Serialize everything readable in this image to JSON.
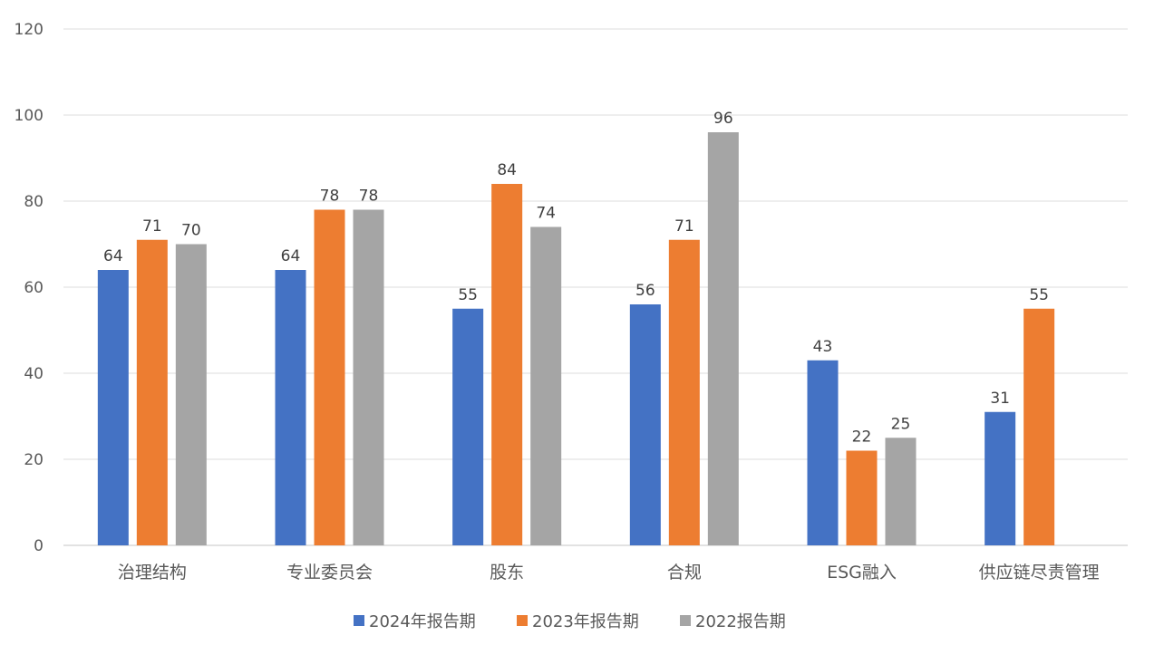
{
  "chart_data": {
    "type": "bar",
    "title": "",
    "xlabel": "",
    "ylabel": "",
    "categories": [
      "治理结构",
      "专业委员会",
      "股东",
      "合规",
      "ESG融入",
      "供应链尽责管理"
    ],
    "series": [
      {
        "name": "2024年报告期",
        "color": "#4472C4",
        "values": [
          64,
          64,
          55,
          56,
          43,
          31
        ]
      },
      {
        "name": "2023年报告期",
        "color": "#ED7D31",
        "values": [
          71,
          78,
          84,
          71,
          22,
          55
        ]
      },
      {
        "name": "2022报告期",
        "color": "#A5A5A5",
        "values": [
          70,
          78,
          74,
          96,
          25,
          null
        ]
      }
    ],
    "ylim": [
      0,
      120
    ],
    "yticks": [
      0,
      20,
      40,
      60,
      80,
      100,
      120
    ],
    "grid": true,
    "data_labels": true,
    "legend_position": "bottom"
  }
}
